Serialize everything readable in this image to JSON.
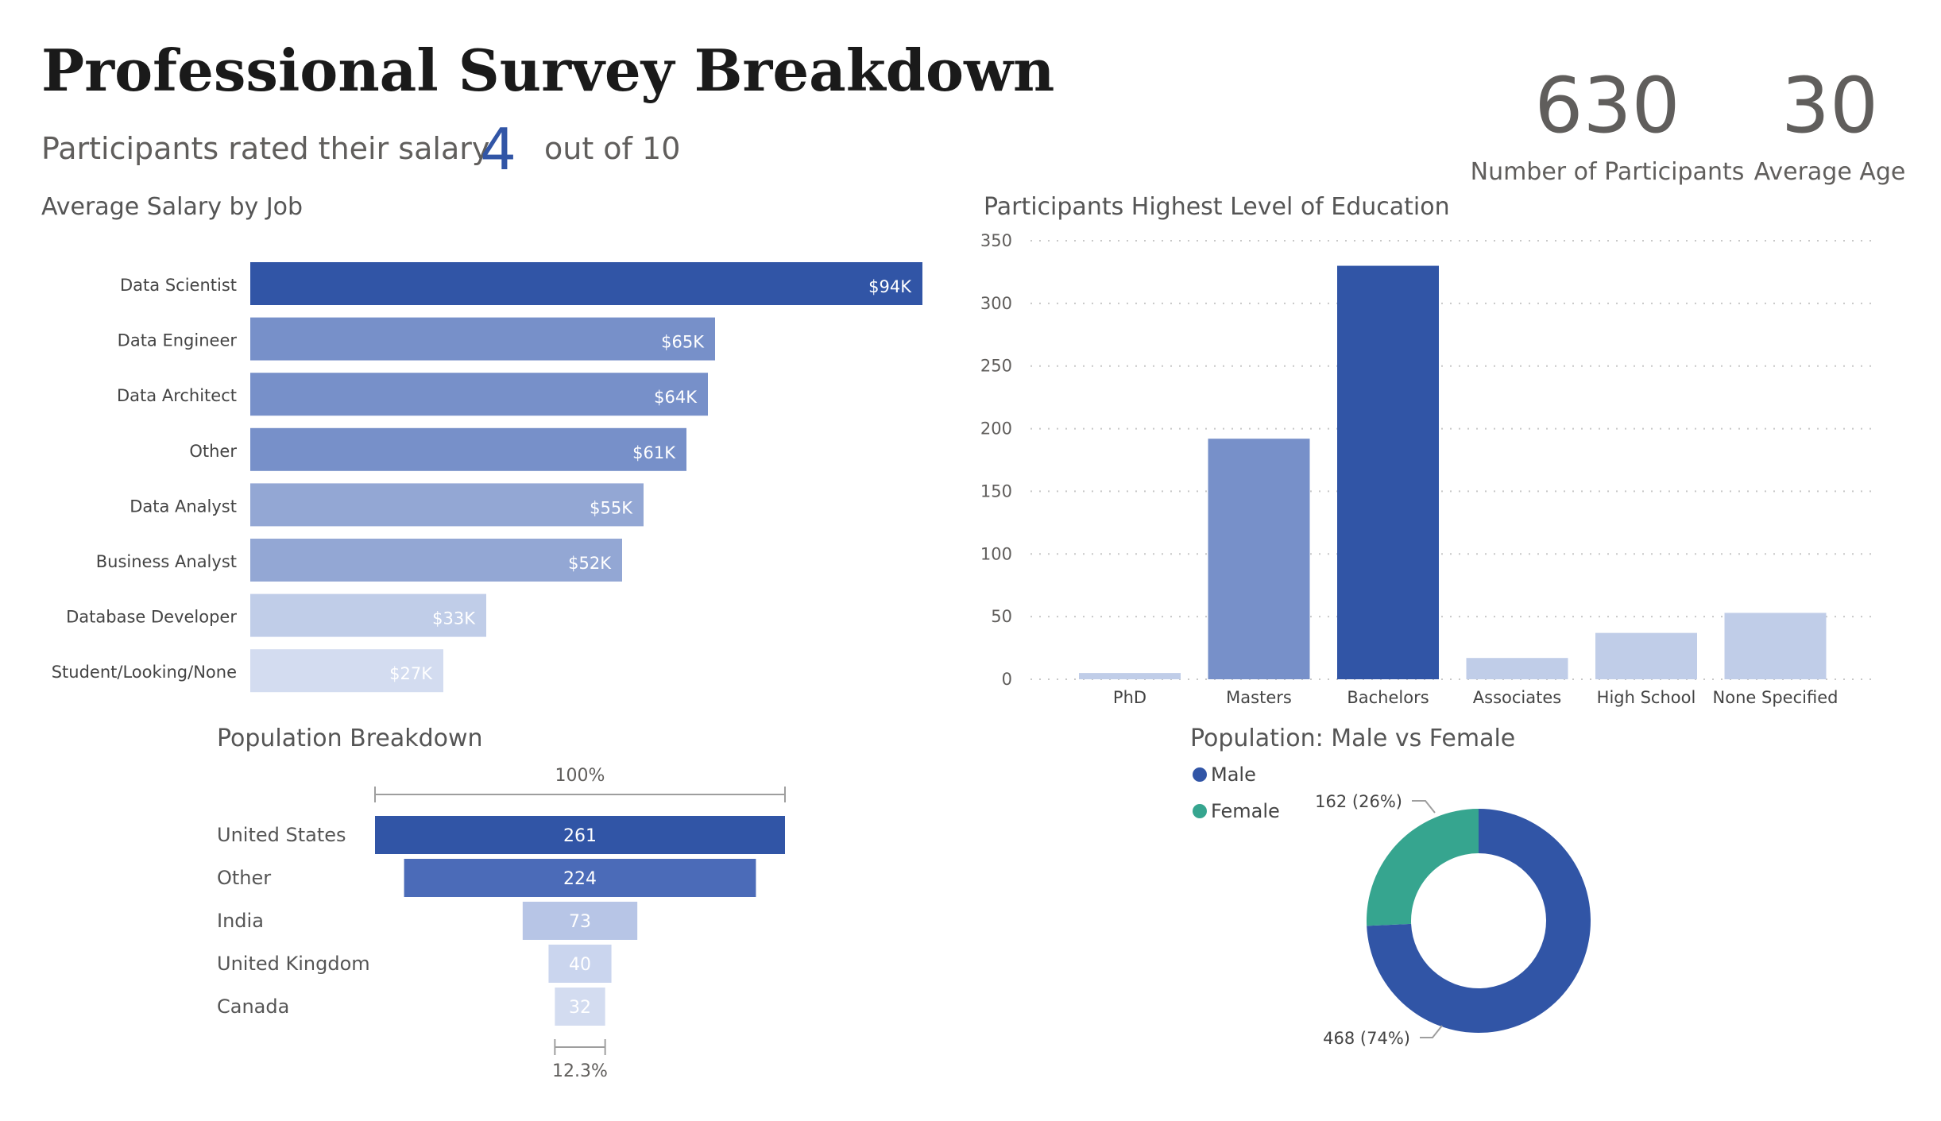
{
  "header": {
    "title": "Professional Survey Breakdown",
    "salary_prefix": "Participants rated their salary",
    "salary_rating": "4",
    "salary_suffix": "out of 10"
  },
  "kpis": [
    {
      "value": "630",
      "label": "Number of Participants"
    },
    {
      "value": "30",
      "label": "Average Age"
    }
  ],
  "colors": {
    "dark_blue": "#3155A6",
    "mid_blue": "#7790C9",
    "light_blue": "#93A7D4",
    "pale_blue": "#C0CDE8",
    "female_teal": "#36A58F",
    "title_text": "#1a1a1a",
    "muted_text": "#605E5C"
  },
  "chart_data": [
    {
      "type": "bar",
      "orientation": "horizontal",
      "title": "Average Salary by Job",
      "categories": [
        "Data Scientist",
        "Data Engineer",
        "Data Architect",
        "Other",
        "Data Analyst",
        "Business Analyst",
        "Database Developer",
        "Student/Looking/None"
      ],
      "values": [
        94,
        65,
        64,
        61,
        55,
        52,
        33,
        27
      ],
      "labels": [
        "$94K",
        "$65K",
        "$64K",
        "$61K",
        "$55K",
        "$52K",
        "$33K",
        "$27K"
      ],
      "unit": "thousand USD",
      "xlim": [
        0,
        100
      ]
    },
    {
      "type": "bar",
      "title": "Participants Highest Level of Education",
      "categories": [
        "PhD",
        "Masters",
        "Bachelors",
        "Associates",
        "High School",
        "None Specified"
      ],
      "values": [
        5,
        192,
        330,
        17,
        37,
        53
      ],
      "ylim": [
        0,
        350
      ],
      "yticks": [
        0,
        50,
        100,
        150,
        200,
        250,
        300,
        350
      ],
      "grid": true
    },
    {
      "type": "bar",
      "subtype": "funnel",
      "title": "Population Breakdown",
      "categories": [
        "United States",
        "Other",
        "India",
        "United Kingdom",
        "Canada"
      ],
      "values": [
        261,
        224,
        73,
        40,
        32
      ],
      "top_percent_label": "100%",
      "bottom_percent_label": "12.3%"
    },
    {
      "type": "pie",
      "subtype": "donut",
      "title": "Population: Male vs Female",
      "categories": [
        "Male",
        "Female"
      ],
      "values": [
        468,
        162
      ],
      "labels": [
        "468 (74%)",
        "162 (26%)"
      ],
      "legend": "top-left"
    }
  ]
}
